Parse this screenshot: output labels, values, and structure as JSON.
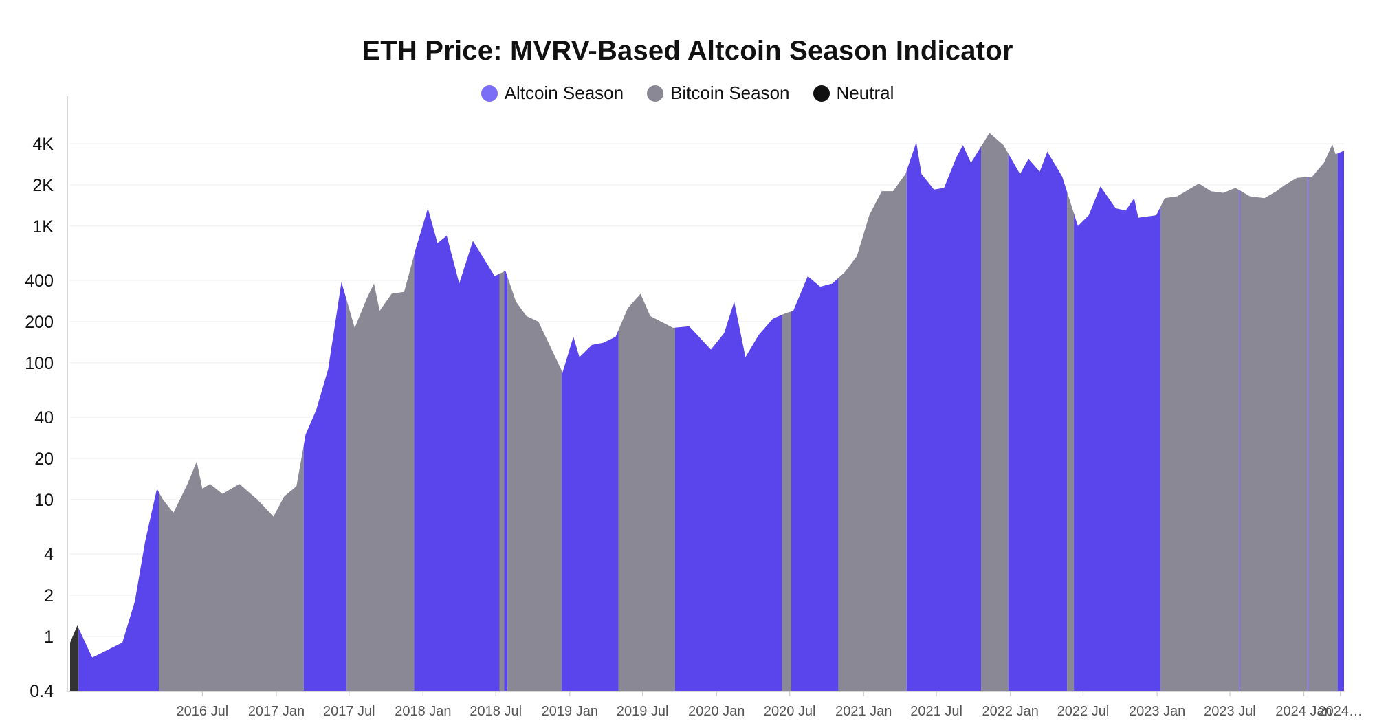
{
  "chart_data": {
    "type": "area",
    "title": "ETH Price: MVRV-Based Altcoin Season Indicator",
    "yscale": "log",
    "ylim": [
      0.4,
      5600
    ],
    "y_ticks": [
      {
        "label": "4K",
        "value": 4000
      },
      {
        "label": "2K",
        "value": 2000
      },
      {
        "label": "1K",
        "value": 1000
      },
      {
        "label": "400",
        "value": 400
      },
      {
        "label": "200",
        "value": 200
      },
      {
        "label": "100",
        "value": 100
      },
      {
        "label": "40",
        "value": 40
      },
      {
        "label": "20",
        "value": 20
      },
      {
        "label": "10",
        "value": 10
      },
      {
        "label": "4",
        "value": 4
      },
      {
        "label": "2",
        "value": 2
      },
      {
        "label": "1",
        "value": 1
      },
      {
        "label": "0.4",
        "value": 0.4
      }
    ],
    "xlim": [
      "2015-08-07",
      "2024-04-10"
    ],
    "x_ticks": [
      {
        "label": "2016 Jul",
        "date": "2016-07-01"
      },
      {
        "label": "2017 Jan",
        "date": "2017-01-01"
      },
      {
        "label": "2017 Jul",
        "date": "2017-07-01"
      },
      {
        "label": "2018 Jan",
        "date": "2018-01-01"
      },
      {
        "label": "2018 Jul",
        "date": "2018-07-01"
      },
      {
        "label": "2019 Jan",
        "date": "2019-01-01"
      },
      {
        "label": "2019 Jul",
        "date": "2019-07-01"
      },
      {
        "label": "2020 Jan",
        "date": "2020-01-01"
      },
      {
        "label": "2020 Jul",
        "date": "2020-07-01"
      },
      {
        "label": "2021 Jan",
        "date": "2021-01-01"
      },
      {
        "label": "2021 Jul",
        "date": "2021-07-01"
      },
      {
        "label": "2022 Jan",
        "date": "2022-01-01"
      },
      {
        "label": "2022 Jul",
        "date": "2022-07-01"
      },
      {
        "label": "2023 Jan",
        "date": "2023-01-01"
      },
      {
        "label": "2023 Jul",
        "date": "2023-07-01"
      },
      {
        "label": "2024 Jan",
        "date": "2024-01-01"
      },
      {
        "label": "2024…",
        "date": "2024-04-01"
      }
    ],
    "legend": [
      {
        "name": "Altcoin Season",
        "color": "#7b6ef6"
      },
      {
        "name": "Bitcoin Season",
        "color": "#8a8894"
      },
      {
        "name": "Neutral",
        "color": "#111111"
      }
    ],
    "legend_position": "top-center",
    "grid": true,
    "series_colors": {
      "altcoin": "#5a45ec",
      "bitcoin": "#8a8894",
      "neutral": "#333333"
    },
    "price": [
      {
        "x": "2015-08-07",
        "y": 0.9
      },
      {
        "x": "2015-08-25",
        "y": 1.2
      },
      {
        "x": "2015-10-01",
        "y": 0.7
      },
      {
        "x": "2015-12-15",
        "y": 0.9
      },
      {
        "x": "2016-01-15",
        "y": 1.8
      },
      {
        "x": "2016-02-10",
        "y": 5
      },
      {
        "x": "2016-03-10",
        "y": 12
      },
      {
        "x": "2016-03-25",
        "y": 10
      },
      {
        "x": "2016-04-20",
        "y": 8
      },
      {
        "x": "2016-05-25",
        "y": 13
      },
      {
        "x": "2016-06-17",
        "y": 19
      },
      {
        "x": "2016-07-01",
        "y": 12
      },
      {
        "x": "2016-07-20",
        "y": 13
      },
      {
        "x": "2016-08-20",
        "y": 11
      },
      {
        "x": "2016-10-01",
        "y": 13
      },
      {
        "x": "2016-11-15",
        "y": 10
      },
      {
        "x": "2016-12-25",
        "y": 7.5
      },
      {
        "x": "2017-01-20",
        "y": 10.5
      },
      {
        "x": "2017-02-20",
        "y": 12.5
      },
      {
        "x": "2017-03-15",
        "y": 30
      },
      {
        "x": "2017-04-10",
        "y": 45
      },
      {
        "x": "2017-05-10",
        "y": 90
      },
      {
        "x": "2017-06-12",
        "y": 390
      },
      {
        "x": "2017-07-15",
        "y": 180
      },
      {
        "x": "2017-08-15",
        "y": 300
      },
      {
        "x": "2017-09-01",
        "y": 380
      },
      {
        "x": "2017-09-15",
        "y": 240
      },
      {
        "x": "2017-10-15",
        "y": 320
      },
      {
        "x": "2017-11-15",
        "y": 330
      },
      {
        "x": "2017-12-15",
        "y": 700
      },
      {
        "x": "2018-01-13",
        "y": 1350
      },
      {
        "x": "2018-02-06",
        "y": 750
      },
      {
        "x": "2018-03-01",
        "y": 850
      },
      {
        "x": "2018-04-01",
        "y": 380
      },
      {
        "x": "2018-05-05",
        "y": 780
      },
      {
        "x": "2018-06-01",
        "y": 580
      },
      {
        "x": "2018-06-28",
        "y": 430
      },
      {
        "x": "2018-07-25",
        "y": 470
      },
      {
        "x": "2018-08-20",
        "y": 280
      },
      {
        "x": "2018-09-15",
        "y": 220
      },
      {
        "x": "2018-10-15",
        "y": 200
      },
      {
        "x": "2018-11-20",
        "y": 120
      },
      {
        "x": "2018-12-14",
        "y": 85
      },
      {
        "x": "2019-01-10",
        "y": 155
      },
      {
        "x": "2019-01-25",
        "y": 110
      },
      {
        "x": "2019-02-25",
        "y": 135
      },
      {
        "x": "2019-03-25",
        "y": 140
      },
      {
        "x": "2019-04-25",
        "y": 155
      },
      {
        "x": "2019-05-25",
        "y": 250
      },
      {
        "x": "2019-06-26",
        "y": 320
      },
      {
        "x": "2019-07-20",
        "y": 220
      },
      {
        "x": "2019-09-15",
        "y": 180
      },
      {
        "x": "2019-10-25",
        "y": 185
      },
      {
        "x": "2019-12-18",
        "y": 125
      },
      {
        "x": "2020-01-20",
        "y": 165
      },
      {
        "x": "2020-02-14",
        "y": 280
      },
      {
        "x": "2020-03-13",
        "y": 110
      },
      {
        "x": "2020-04-15",
        "y": 160
      },
      {
        "x": "2020-05-20",
        "y": 210
      },
      {
        "x": "2020-06-20",
        "y": 230
      },
      {
        "x": "2020-07-10",
        "y": 240
      },
      {
        "x": "2020-08-15",
        "y": 430
      },
      {
        "x": "2020-09-15",
        "y": 360
      },
      {
        "x": "2020-10-15",
        "y": 380
      },
      {
        "x": "2020-11-15",
        "y": 460
      },
      {
        "x": "2020-12-15",
        "y": 600
      },
      {
        "x": "2021-01-15",
        "y": 1200
      },
      {
        "x": "2021-02-15",
        "y": 1800
      },
      {
        "x": "2021-03-15",
        "y": 1800
      },
      {
        "x": "2021-04-15",
        "y": 2400
      },
      {
        "x": "2021-05-12",
        "y": 4100
      },
      {
        "x": "2021-05-25",
        "y": 2400
      },
      {
        "x": "2021-06-25",
        "y": 1850
      },
      {
        "x": "2021-07-20",
        "y": 1900
      },
      {
        "x": "2021-08-20",
        "y": 3200
      },
      {
        "x": "2021-09-05",
        "y": 3900
      },
      {
        "x": "2021-09-25",
        "y": 2900
      },
      {
        "x": "2021-11-10",
        "y": 4800
      },
      {
        "x": "2021-12-15",
        "y": 3900
      },
      {
        "x": "2022-01-25",
        "y": 2400
      },
      {
        "x": "2022-02-15",
        "y": 3100
      },
      {
        "x": "2022-03-15",
        "y": 2500
      },
      {
        "x": "2022-04-03",
        "y": 3500
      },
      {
        "x": "2022-05-10",
        "y": 2300
      },
      {
        "x": "2022-06-18",
        "y": 1000
      },
      {
        "x": "2022-07-15",
        "y": 1200
      },
      {
        "x": "2022-08-13",
        "y": 1950
      },
      {
        "x": "2022-09-20",
        "y": 1350
      },
      {
        "x": "2022-10-15",
        "y": 1300
      },
      {
        "x": "2022-11-05",
        "y": 1600
      },
      {
        "x": "2022-11-15",
        "y": 1150
      },
      {
        "x": "2022-12-30",
        "y": 1200
      },
      {
        "x": "2023-01-20",
        "y": 1600
      },
      {
        "x": "2023-02-20",
        "y": 1650
      },
      {
        "x": "2023-04-15",
        "y": 2050
      },
      {
        "x": "2023-05-15",
        "y": 1800
      },
      {
        "x": "2023-06-15",
        "y": 1750
      },
      {
        "x": "2023-07-15",
        "y": 1900
      },
      {
        "x": "2023-08-20",
        "y": 1650
      },
      {
        "x": "2023-09-25",
        "y": 1600
      },
      {
        "x": "2023-10-25",
        "y": 1800
      },
      {
        "x": "2023-11-15",
        "y": 2000
      },
      {
        "x": "2023-12-15",
        "y": 2250
      },
      {
        "x": "2024-01-22",
        "y": 2300
      },
      {
        "x": "2024-02-20",
        "y": 2900
      },
      {
        "x": "2024-03-12",
        "y": 3950
      },
      {
        "x": "2024-03-20",
        "y": 3350
      },
      {
        "x": "2024-04-10",
        "y": 3550
      }
    ],
    "regimes": [
      {
        "start": "2015-08-07",
        "end": "2015-08-28",
        "season": "neutral"
      },
      {
        "start": "2015-08-28",
        "end": "2016-03-15",
        "season": "altcoin"
      },
      {
        "start": "2016-03-15",
        "end": "2017-03-10",
        "season": "bitcoin"
      },
      {
        "start": "2017-03-10",
        "end": "2017-06-25",
        "season": "altcoin"
      },
      {
        "start": "2017-06-25",
        "end": "2017-12-10",
        "season": "bitcoin"
      },
      {
        "start": "2017-12-10",
        "end": "2018-07-10",
        "season": "altcoin"
      },
      {
        "start": "2018-07-10",
        "end": "2018-07-22",
        "season": "bitcoin"
      },
      {
        "start": "2018-07-22",
        "end": "2018-07-30",
        "season": "altcoin"
      },
      {
        "start": "2018-07-30",
        "end": "2018-12-12",
        "season": "bitcoin"
      },
      {
        "start": "2018-12-12",
        "end": "2019-05-02",
        "season": "altcoin"
      },
      {
        "start": "2019-05-02",
        "end": "2019-09-20",
        "season": "bitcoin"
      },
      {
        "start": "2019-09-20",
        "end": "2020-06-12",
        "season": "altcoin"
      },
      {
        "start": "2020-06-12",
        "end": "2020-07-05",
        "season": "bitcoin"
      },
      {
        "start": "2020-07-05",
        "end": "2020-10-30",
        "season": "altcoin"
      },
      {
        "start": "2020-10-30",
        "end": "2021-04-18",
        "season": "bitcoin"
      },
      {
        "start": "2021-04-18",
        "end": "2021-10-20",
        "season": "altcoin"
      },
      {
        "start": "2021-10-20",
        "end": "2021-12-27",
        "season": "bitcoin"
      },
      {
        "start": "2021-12-27",
        "end": "2022-05-22",
        "season": "altcoin"
      },
      {
        "start": "2022-05-22",
        "end": "2022-06-08",
        "season": "bitcoin"
      },
      {
        "start": "2022-06-08",
        "end": "2023-01-10",
        "season": "altcoin"
      },
      {
        "start": "2023-01-10",
        "end": "2023-07-25",
        "season": "bitcoin"
      },
      {
        "start": "2023-07-25",
        "end": "2023-07-27",
        "season": "altcoin"
      },
      {
        "start": "2023-07-27",
        "end": "2024-01-10",
        "season": "bitcoin"
      },
      {
        "start": "2024-01-10",
        "end": "2024-01-12",
        "season": "altcoin"
      },
      {
        "start": "2024-01-12",
        "end": "2024-03-25",
        "season": "bitcoin"
      },
      {
        "start": "2024-03-25",
        "end": "2024-04-10",
        "season": "altcoin"
      }
    ]
  }
}
